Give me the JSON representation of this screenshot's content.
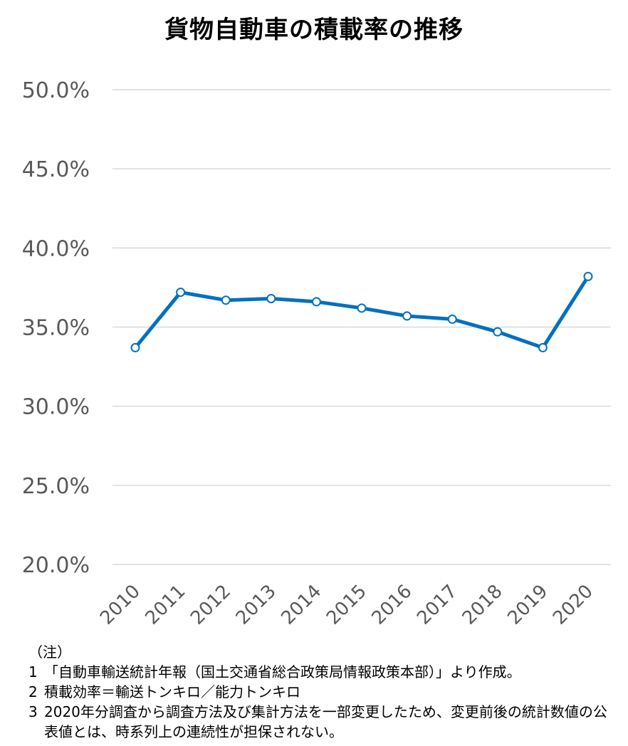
{
  "chart_data": {
    "type": "line",
    "title": "貨物自動車の積載率の推移",
    "xlabel": "",
    "ylabel": "",
    "x": [
      "2010",
      "2011",
      "2012",
      "2013",
      "2014",
      "2015",
      "2016",
      "2017",
      "2018",
      "2019",
      "2020"
    ],
    "series": [
      {
        "values": [
          33.7,
          37.2,
          36.7,
          36.8,
          36.6,
          36.2,
          35.7,
          35.5,
          34.7,
          33.7,
          38.2
        ]
      }
    ],
    "ylim": [
      20,
      50
    ],
    "yticks": [
      "20.0%",
      "25.0%",
      "30.0%",
      "35.0%",
      "40.0%",
      "45.0%",
      "50.0%"
    ],
    "ytick_values": [
      20,
      25,
      30,
      35,
      40,
      45,
      50
    ],
    "grid": true,
    "legend": "none",
    "colors": {
      "line": "#0070c0",
      "grid": "#d9d9d9",
      "tick_text": "#595959"
    }
  },
  "notes": {
    "heading": "（注）",
    "items": [
      {
        "num": "1",
        "text": "「自動車輸送統計年報（国土交通省総合政策局情報政策本部）」より作成。"
      },
      {
        "num": "2",
        "text": "積載効率＝輸送トンキロ／能力トンキロ"
      },
      {
        "num": "3",
        "text": "2020年分調査から調査方法及び集計方法を一部変更したため、変更前後の統計数値の公表値とは、時系列上の連続性が担保されない。"
      }
    ]
  }
}
